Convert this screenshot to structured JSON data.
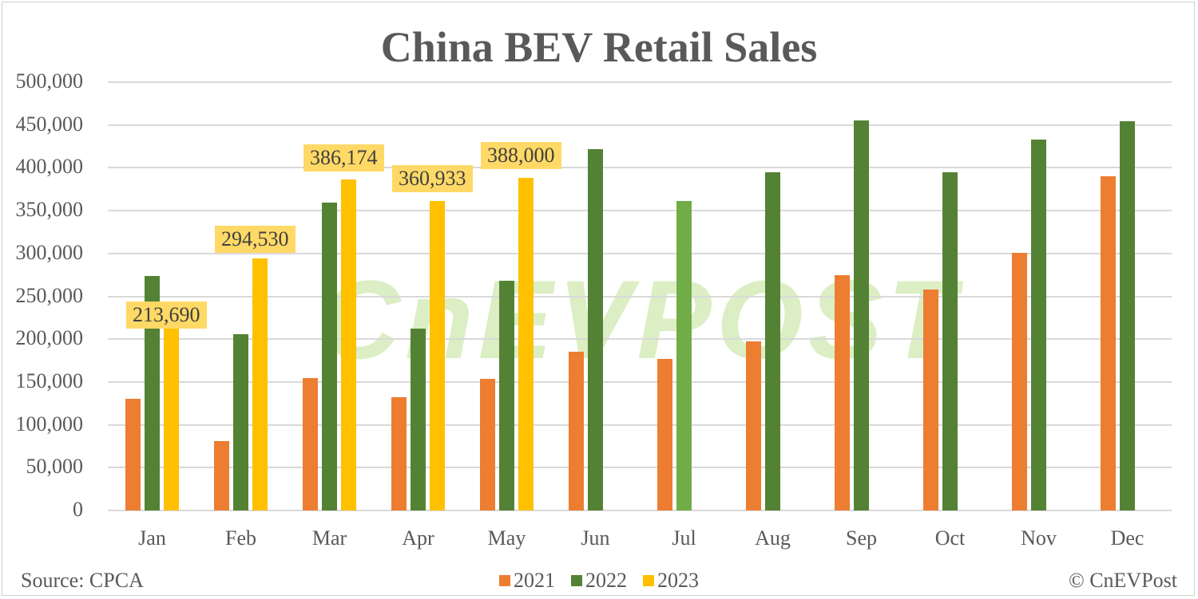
{
  "chart_data": {
    "type": "bar",
    "title": "China BEV Retail Sales",
    "xlabel": "",
    "ylabel": "",
    "ylim": [
      0,
      500000
    ],
    "yticks": [
      "0",
      "50,000",
      "100,000",
      "150,000",
      "200,000",
      "250,000",
      "300,000",
      "350,000",
      "400,000",
      "450,000",
      "500,000"
    ],
    "grid": true,
    "legend_position": "bottom",
    "categories": [
      "Jan",
      "Feb",
      "Mar",
      "Apr",
      "May",
      "Jun",
      "Jul",
      "Aug",
      "Sep",
      "Oct",
      "Nov",
      "Dec"
    ],
    "series": [
      {
        "name": "2021",
        "color": "#ed7d31",
        "values": [
          130000,
          81000,
          155000,
          132000,
          154000,
          185000,
          177000,
          197000,
          275000,
          258000,
          301000,
          390000
        ]
      },
      {
        "name": "2022",
        "color": "#548235",
        "values": [
          274000,
          206000,
          359000,
          212000,
          268000,
          422000,
          361000,
          395000,
          455000,
          395000,
          433000,
          454000
        ]
      },
      {
        "name": "2023",
        "color": "#ffc000",
        "values": [
          213690,
          294530,
          386174,
          360933,
          388000,
          null,
          null,
          null,
          null,
          null,
          null,
          null
        ]
      }
    ],
    "data_labels": [
      {
        "category": "Jan",
        "series": "2023",
        "text": "213,690"
      },
      {
        "category": "Feb",
        "series": "2023",
        "text": "294,530"
      },
      {
        "category": "Mar",
        "series": "2023",
        "text": "386,174"
      },
      {
        "category": "Apr",
        "series": "2023",
        "text": "360,933"
      },
      {
        "category": "May",
        "series": "2023",
        "text": "388,000"
      }
    ],
    "annotations": [
      "Source: CPCA",
      "© CnEVPost"
    ]
  },
  "footer": {
    "source": "Source: CPCA",
    "copyright": "© CnEVPost"
  },
  "watermark": "CnEVPOST"
}
